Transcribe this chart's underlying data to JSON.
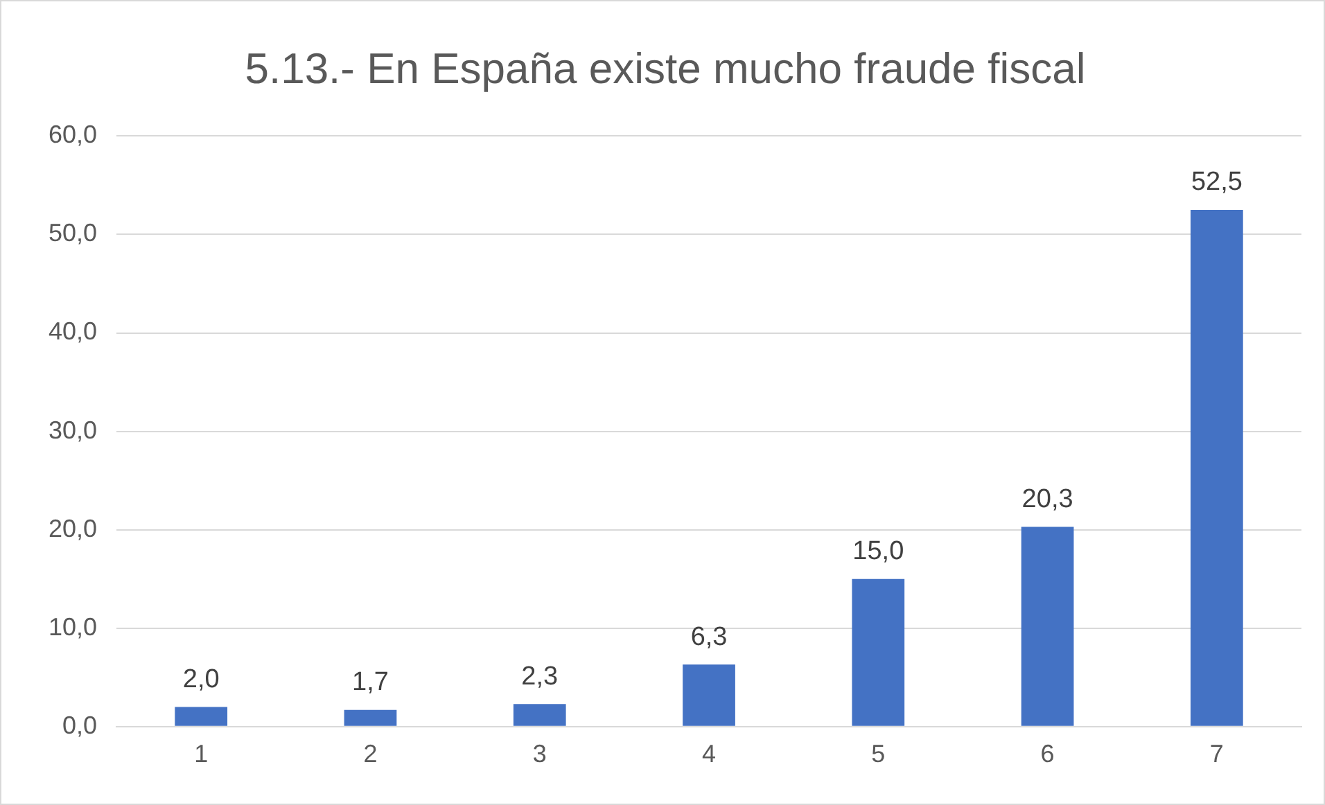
{
  "chart_data": {
    "type": "bar",
    "title": "5.13.- En España existe mucho fraude fiscal",
    "categories": [
      "1",
      "2",
      "3",
      "4",
      "5",
      "6",
      "7"
    ],
    "values": [
      2.0,
      1.7,
      2.3,
      6.3,
      15.0,
      20.3,
      52.5
    ],
    "value_labels": [
      "2,0",
      "1,7",
      "2,3",
      "6,3",
      "15,0",
      "20,3",
      "52,5"
    ],
    "color": "#4472c4",
    "ylim": [
      0,
      60
    ],
    "yticks": [
      {
        "value": 0,
        "label": "0,0"
      },
      {
        "value": 10,
        "label": "10,0"
      },
      {
        "value": 20,
        "label": "20,0"
      },
      {
        "value": 30,
        "label": "30,0"
      },
      {
        "value": 40,
        "label": "40,0"
      },
      {
        "value": 50,
        "label": "50,0"
      },
      {
        "value": 60,
        "label": "60,0"
      }
    ],
    "grid": "y",
    "legend": false
  }
}
